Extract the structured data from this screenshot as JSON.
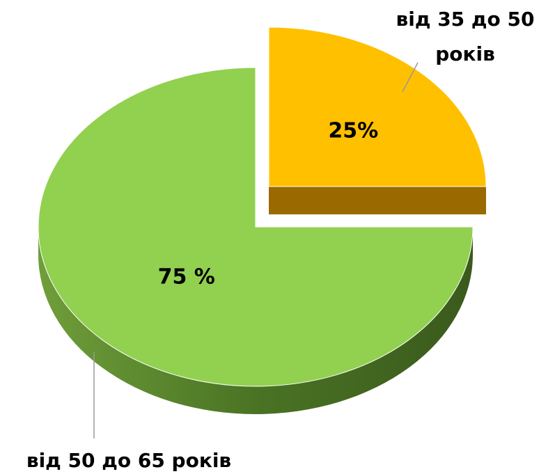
{
  "chart_data": {
    "type": "pie",
    "categories": [
      "від 35 до 50 років",
      "від 50 до 65 років"
    ],
    "values": [
      25,
      75
    ],
    "value_labels": [
      "25%",
      "75 %"
    ],
    "colors": [
      "#ffc000",
      "#92d050"
    ],
    "side_colors": [
      "#9a6a00",
      "#4a7324"
    ],
    "exploded": [
      true,
      false
    ]
  }
}
